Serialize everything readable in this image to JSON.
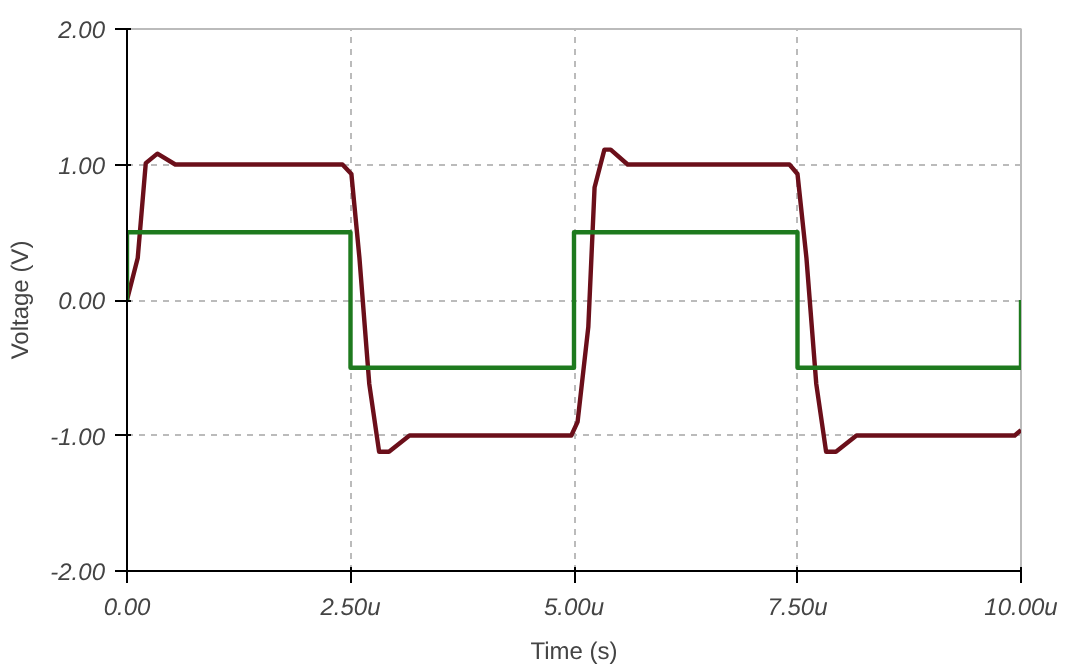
{
  "chart_data": {
    "type": "line",
    "xlabel": "Time (s)",
    "ylabel": "Voltage (V)",
    "xlim": [
      0,
      10
    ],
    "ylim": [
      -2,
      2
    ],
    "xticks": [
      {
        "value": 0,
        "label": "0.00"
      },
      {
        "value": 2.5,
        "label": "2.50u"
      },
      {
        "value": 5,
        "label": "5.00u"
      },
      {
        "value": 7.5,
        "label": "7.50u"
      },
      {
        "value": 10,
        "label": "10.00u"
      }
    ],
    "yticks": [
      {
        "value": -2,
        "label": "-2.00"
      },
      {
        "value": -1,
        "label": "-1.00"
      },
      {
        "value": 0,
        "label": "0.00"
      },
      {
        "value": 1,
        "label": "1.00"
      },
      {
        "value": 2,
        "label": "2.00"
      }
    ],
    "grid": true,
    "line_style": "solid",
    "series": [
      {
        "color": "#6b0f1a",
        "x": [
          0,
          0.12,
          0.21,
          0.34,
          0.54,
          2.41,
          2.51,
          2.6,
          2.71,
          2.82,
          2.93,
          3.16,
          4.97,
          5.04,
          5.16,
          5.23,
          5.34,
          5.41,
          5.6,
          7.41,
          7.5,
          7.6,
          7.71,
          7.82,
          7.93,
          8.16,
          9.93,
          10
        ],
        "values": [
          0,
          0.31,
          1.01,
          1.08,
          1.0,
          1.0,
          0.93,
          0.31,
          -0.62,
          -1.12,
          -1.12,
          -1.0,
          -1.0,
          -0.9,
          -0.2,
          0.83,
          1.11,
          1.11,
          1.0,
          1.0,
          0.93,
          0.31,
          -0.62,
          -1.12,
          -1.12,
          -1.0,
          -1.0,
          -0.96
        ]
      },
      {
        "color": "#1e7a1e",
        "x": [
          0,
          0,
          2.5,
          2.5,
          5,
          5,
          7.5,
          7.5,
          10,
          10
        ],
        "values": [
          0,
          0.5,
          0.5,
          -0.5,
          -0.5,
          0.5,
          0.5,
          -0.5,
          -0.5,
          0
        ]
      }
    ]
  }
}
